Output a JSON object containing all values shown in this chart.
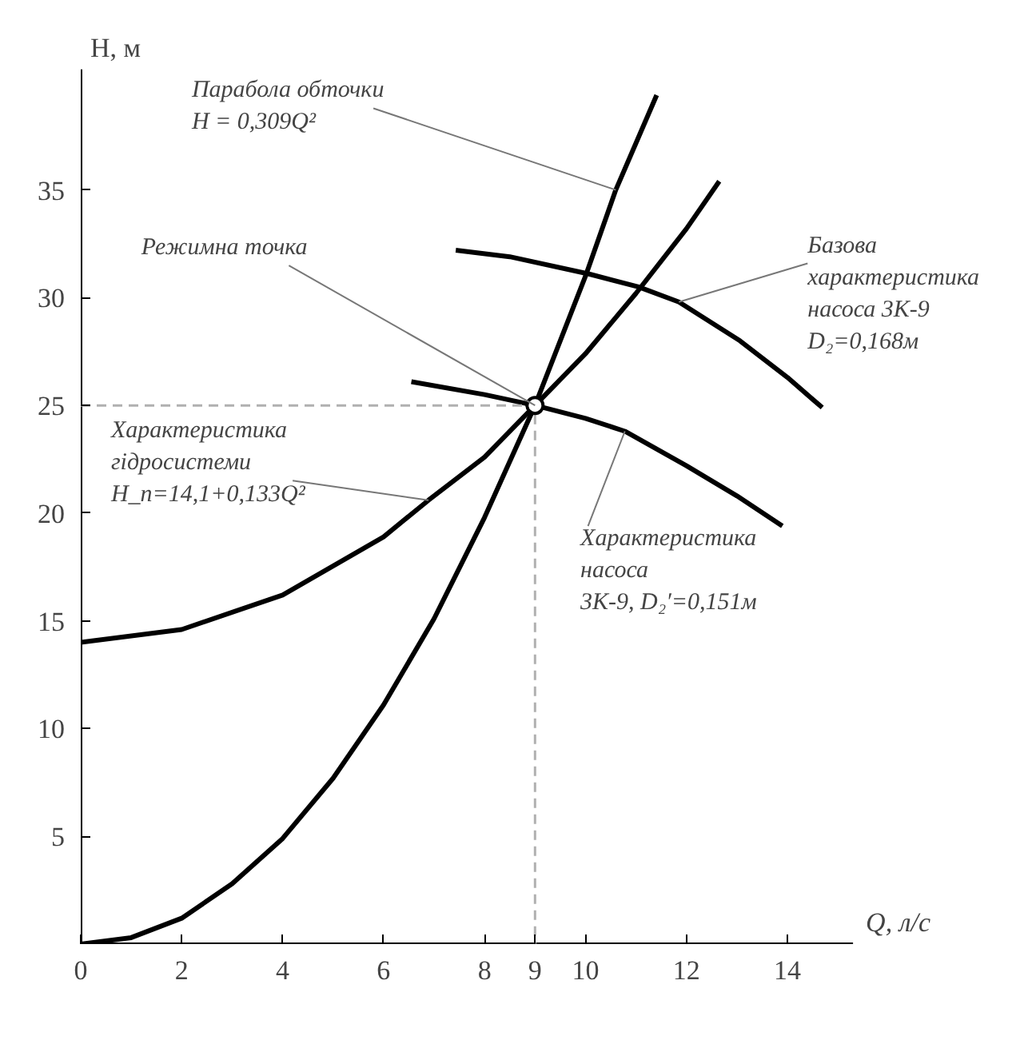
{
  "chart_data": {
    "type": "line",
    "xlabel": "Q, л/с",
    "ylabel": "H, м",
    "xlim": [
      0,
      15.3
    ],
    "ylim": [
      0,
      40.6
    ],
    "xticks": [
      0,
      2,
      4,
      6,
      8,
      9,
      10,
      12,
      14
    ],
    "yticks": [
      5,
      10,
      15,
      20,
      25,
      30,
      35
    ],
    "grid": false,
    "series": [
      {
        "color": "#000000",
        "x": [
          0,
          1,
          2,
          3,
          4,
          5,
          6,
          7,
          8,
          9,
          10,
          10.6,
          11.41
        ],
        "values": [
          0,
          0.3,
          1.2,
          2.8,
          4.9,
          7.7,
          11.1,
          15.1,
          19.8,
          25.0,
          31.0,
          35.0,
          39.4
        ]
      },
      {
        "color": "#000000",
        "x": [
          0,
          2,
          4,
          6,
          6.89,
          8,
          9,
          10,
          11,
          12,
          12.65
        ],
        "values": [
          14.0,
          14.6,
          16.2,
          18.9,
          20.6,
          22.6,
          25.0,
          27.4,
          30.2,
          33.2,
          35.4
        ]
      },
      {
        "color": "#000000",
        "x": [
          7.43,
          8.5,
          10.07,
          11.05,
          11.85,
          13.06,
          14.0,
          14.69
        ],
        "values": [
          32.2,
          31.9,
          31.1,
          30.5,
          29.8,
          28.0,
          26.3,
          24.9
        ]
      },
      {
        "color": "#000000",
        "x": [
          6.55,
          8,
          9,
          10,
          10.78,
          12,
          13,
          13.9
        ],
        "values": [
          26.1,
          25.5,
          25.0,
          24.4,
          23.8,
          22.2,
          20.8,
          19.4
        ]
      },
      {
        "color": "#b0b0b0",
        "line_style": "dashed",
        "x": [
          0,
          9,
          9
        ],
        "values": [
          25.0,
          25.0,
          0
        ]
      },
      {
        "type": "scatter",
        "marker": "circle",
        "color": "#000000",
        "x": [
          9
        ],
        "values": [
          25.0
        ]
      }
    ],
    "annotations": [
      {
        "text": "Парабола обточки\nH = 0,309Q²",
        "x": 10.6,
        "y": 35.0
      },
      {
        "text": "Режимна точка",
        "x": 9,
        "y": 25.0
      },
      {
        "text": "Базова\nхарактеристика\nнасоса 3К-9\nD₂=0,168м",
        "x": 11.85,
        "y": 29.8
      },
      {
        "text": "Характеристика\nгідросистеми\nH_п=14,1+0,133Q²",
        "x": 6.89,
        "y": 20.6
      },
      {
        "text": "Характеристика\nнасоса\n3К-9,  D₂′=0,151м",
        "x": 10.78,
        "y": 23.8
      }
    ]
  }
}
